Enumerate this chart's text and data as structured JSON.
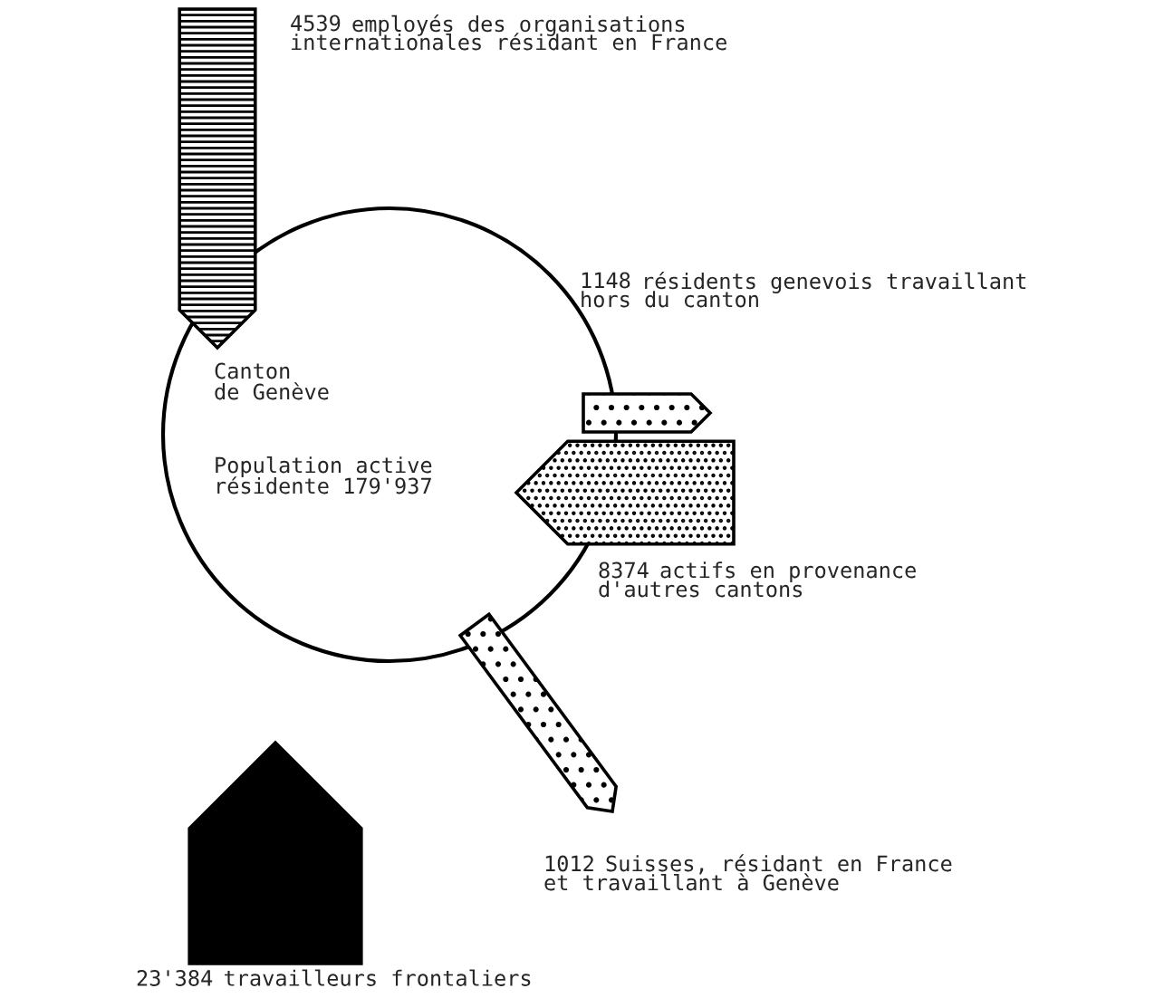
{
  "chart_data": {
    "type": "other",
    "categories": [
      "employés des organisations\ninternationales résidant en France",
      "résidents genevois travaillant\nhors du canton",
      "actifs en provenance\nd'autres cantons",
      "Suisses, résidant en France\net travaillant à Genève",
      "travailleurs frontaliers"
    ],
    "values": [
      4539,
      1148,
      8374,
      1012,
      23384
    ],
    "value_labels": [
      "4539",
      "1148",
      "8374",
      "1012",
      "23'384"
    ],
    "colors": [
      "#ffffff",
      "#ffffff",
      "#ffffff",
      "#ffffff",
      "#000000"
    ],
    "annotations": [
      "Canton\nde Genève",
      "Population active\nrésidente 179'937"
    ]
  }
}
